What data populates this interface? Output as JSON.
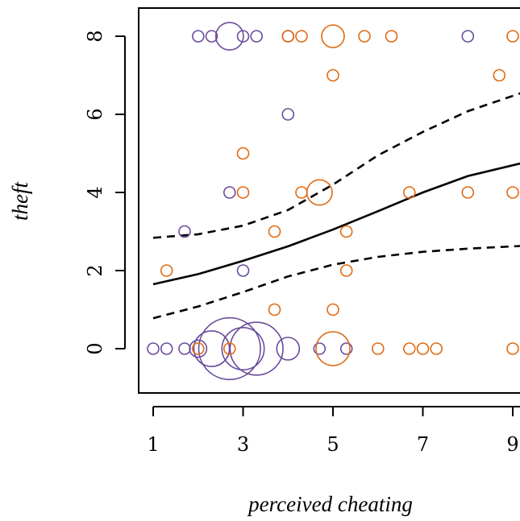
{
  "chart_data": {
    "type": "scatter",
    "xlabel": "perceived cheating",
    "ylabel": "theft",
    "xlim": [
      0.7,
      9.2
    ],
    "ylim": [
      -1.2,
      8.75
    ],
    "x_ticks": [
      1,
      3,
      5,
      7,
      9
    ],
    "y_ticks": [
      0,
      2,
      4,
      6,
      8
    ],
    "colors": {
      "purple": "#6a4c9c",
      "orange": "#e06a12",
      "line": "#000000"
    },
    "series": [
      {
        "color": "purple",
        "points": [
          {
            "x": 2.0,
            "y": 8,
            "size": 1
          },
          {
            "x": 2.3,
            "y": 8,
            "size": 1
          },
          {
            "x": 2.7,
            "y": 8,
            "size": 6
          },
          {
            "x": 3.0,
            "y": 8,
            "size": 1
          },
          {
            "x": 3.3,
            "y": 8,
            "size": 1
          },
          {
            "x": 4.0,
            "y": 8,
            "size": 1
          },
          {
            "x": 8.0,
            "y": 8,
            "size": 1
          },
          {
            "x": 4.0,
            "y": 6,
            "size": 1
          },
          {
            "x": 2.7,
            "y": 4,
            "size": 1
          },
          {
            "x": 1.7,
            "y": 3,
            "size": 1
          },
          {
            "x": 3.0,
            "y": 2,
            "size": 1
          },
          {
            "x": 1.0,
            "y": 0,
            "size": 1
          },
          {
            "x": 1.3,
            "y": 0,
            "size": 1
          },
          {
            "x": 1.7,
            "y": 0,
            "size": 1
          },
          {
            "x": 2.0,
            "y": 0,
            "size": 2.3
          },
          {
            "x": 2.3,
            "y": 0,
            "size": 10
          },
          {
            "x": 2.7,
            "y": 0,
            "size": 30
          },
          {
            "x": 3.0,
            "y": 0,
            "size": 14
          },
          {
            "x": 3.3,
            "y": 0,
            "size": 22
          },
          {
            "x": 4.0,
            "y": 0,
            "size": 4
          },
          {
            "x": 4.7,
            "y": 0,
            "size": 1
          },
          {
            "x": 5.3,
            "y": 0,
            "size": 1
          }
        ]
      },
      {
        "color": "orange",
        "points": [
          {
            "x": 4.0,
            "y": 8,
            "size": 1
          },
          {
            "x": 4.3,
            "y": 8,
            "size": 1
          },
          {
            "x": 5.0,
            "y": 8,
            "size": 4
          },
          {
            "x": 5.7,
            "y": 8,
            "size": 1
          },
          {
            "x": 6.3,
            "y": 8,
            "size": 1
          },
          {
            "x": 9.0,
            "y": 8,
            "size": 1
          },
          {
            "x": 5.0,
            "y": 7,
            "size": 1
          },
          {
            "x": 8.7,
            "y": 7,
            "size": 1
          },
          {
            "x": 3.0,
            "y": 5,
            "size": 1
          },
          {
            "x": 3.0,
            "y": 4,
            "size": 1
          },
          {
            "x": 4.3,
            "y": 4,
            "size": 1
          },
          {
            "x": 4.7,
            "y": 4,
            "size": 5
          },
          {
            "x": 6.7,
            "y": 4,
            "size": 1
          },
          {
            "x": 8.0,
            "y": 4,
            "size": 1
          },
          {
            "x": 9.0,
            "y": 4,
            "size": 1
          },
          {
            "x": 3.7,
            "y": 3,
            "size": 1
          },
          {
            "x": 5.3,
            "y": 3,
            "size": 1
          },
          {
            "x": 1.3,
            "y": 2,
            "size": 1
          },
          {
            "x": 5.3,
            "y": 2,
            "size": 1
          },
          {
            "x": 3.7,
            "y": 1,
            "size": 1
          },
          {
            "x": 5.0,
            "y": 1,
            "size": 1
          },
          {
            "x": 2.0,
            "y": 0,
            "size": 1
          },
          {
            "x": 2.7,
            "y": 0,
            "size": 1
          },
          {
            "x": 5.0,
            "y": 0,
            "size": 9
          },
          {
            "x": 6.0,
            "y": 0,
            "size": 1
          },
          {
            "x": 6.7,
            "y": 0,
            "size": 1
          },
          {
            "x": 7.0,
            "y": 0,
            "size": 1
          },
          {
            "x": 7.3,
            "y": 0,
            "size": 1
          },
          {
            "x": 9.0,
            "y": 0,
            "size": 1
          }
        ]
      }
    ],
    "fit_lines": [
      {
        "style": "solid",
        "x": [
          1,
          2,
          3,
          4,
          5,
          6,
          7,
          8,
          9.2
        ],
        "y": [
          1.65,
          1.91,
          2.25,
          2.62,
          3.05,
          3.52,
          4.0,
          4.42,
          4.75
        ]
      },
      {
        "style": "dashed",
        "x": [
          1,
          2,
          3,
          4,
          5,
          6,
          7,
          8,
          9.2
        ],
        "y": [
          2.84,
          2.93,
          3.15,
          3.55,
          4.2,
          4.95,
          5.55,
          6.08,
          6.55
        ]
      },
      {
        "style": "dashed",
        "x": [
          1,
          2,
          3,
          4,
          5,
          6,
          7,
          8,
          9.2
        ],
        "y": [
          0.78,
          1.08,
          1.45,
          1.85,
          2.15,
          2.35,
          2.48,
          2.56,
          2.63
        ]
      }
    ]
  }
}
